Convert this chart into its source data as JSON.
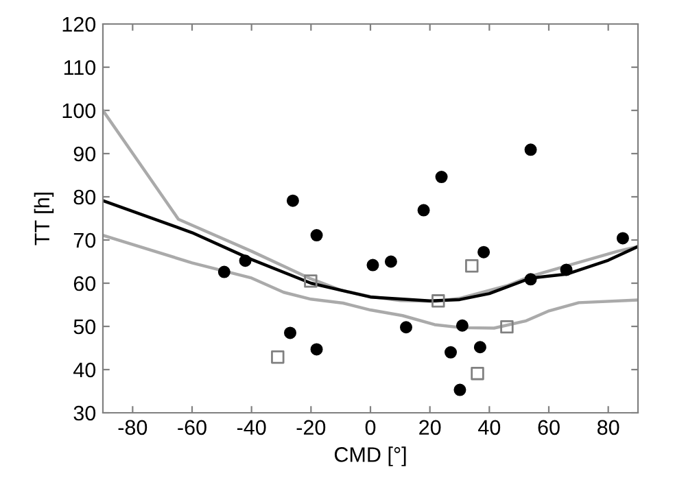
{
  "chart_data": {
    "type": "scatter",
    "xlabel": "CMD [°]",
    "ylabel": "TT [h]",
    "xlim": [
      -90,
      90
    ],
    "ylim": [
      30,
      120
    ],
    "xticks": [
      -80,
      -60,
      -40,
      -20,
      0,
      20,
      40,
      60,
      80
    ],
    "yticks": [
      30,
      40,
      50,
      60,
      70,
      80,
      90,
      100,
      110,
      120
    ],
    "grid": false,
    "legend": false,
    "series": [
      {
        "type": "line",
        "color": "#aaaaaa",
        "marker": "none",
        "line_style": "solid",
        "x": [
          -90,
          -64.6,
          -40,
          -20,
          -10,
          0,
          10,
          22,
          30,
          46.3,
          53.9,
          65.9,
          83.2,
          90
        ],
        "values": [
          100,
          74.8,
          67.4,
          61.0,
          58.4,
          56.9,
          56.0,
          55.8,
          56.5,
          59.5,
          61.6,
          64.0,
          67.4,
          68.5
        ]
      },
      {
        "type": "line",
        "color": "#aaaaaa",
        "marker": "none",
        "line_style": "solid",
        "x": [
          -90,
          -60,
          -40,
          -29.2,
          -20,
          -9.2,
          0,
          10.8,
          21.6,
          30.8,
          41.6,
          52.4,
          60.1,
          70.1,
          90
        ],
        "values": [
          71.1,
          64.7,
          61.2,
          57.9,
          56.3,
          55.4,
          53.8,
          52.5,
          50.4,
          49.7,
          49.6,
          51.3,
          53.6,
          55.5,
          56.1
        ]
      },
      {
        "type": "line",
        "color": "#000000",
        "marker": "none",
        "line_style": "solid",
        "x": [
          -90,
          -60,
          -40,
          -20,
          0,
          20,
          30,
          40,
          54,
          66,
          80,
          90
        ],
        "values": [
          79.1,
          71.7,
          65.5,
          60.0,
          56.8,
          55.9,
          56.2,
          57.6,
          61.2,
          62.1,
          65.3,
          68.5
        ]
      },
      {
        "color": "#000000",
        "marker": "circle",
        "x": [
          -49.2,
          -42.1,
          -26.1,
          -18.1,
          -27.0,
          -18.1,
          0.8,
          6.9,
          12.0,
          17.9,
          23.9,
          27.0,
          30.1,
          30.9,
          36.9,
          38.1,
          53.9,
          53.9,
          65.9,
          84.9
        ],
        "values": [
          62.6,
          65.2,
          79.1,
          71.1,
          48.5,
          44.7,
          64.2,
          65.0,
          49.8,
          76.9,
          84.6,
          44.0,
          35.3,
          50.2,
          45.2,
          67.2,
          90.9,
          60.9,
          63.1,
          70.4
        ]
      },
      {
        "type": "scatter",
        "color": "#808080",
        "marker": "square",
        "x": [
          -20.1,
          -31.2,
          22.8,
          34.1,
          45.9,
          36.0
        ],
        "values": [
          60.5,
          42.9,
          55.9,
          64.0,
          49.9,
          39.1
        ]
      }
    ]
  }
}
